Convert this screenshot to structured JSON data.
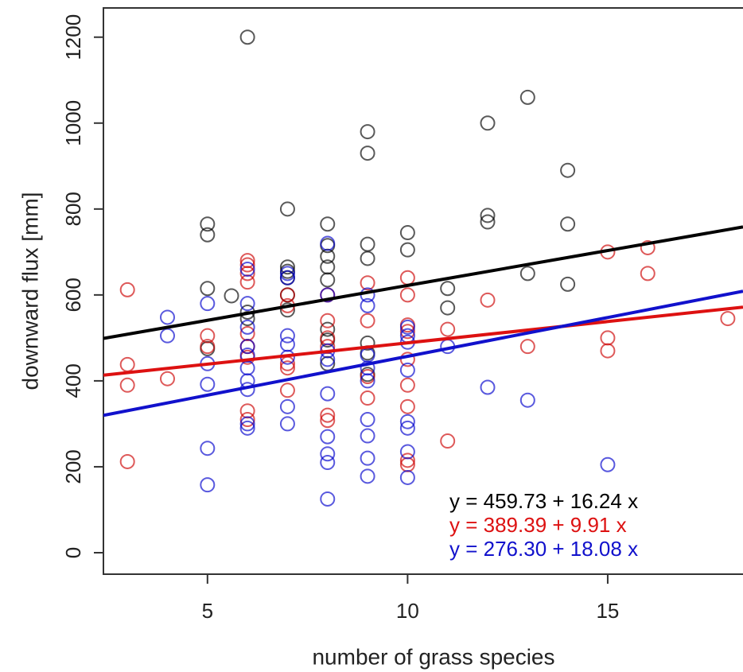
{
  "chart_data": {
    "type": "scatter",
    "x_label": "number of grass species",
    "y_label": "downward flux [mm]",
    "xlim": [
      2.4,
      18.38
    ],
    "ylim": [
      -50,
      1268
    ],
    "xticks": [
      5,
      10,
      15
    ],
    "yticks": [
      0,
      200,
      400,
      600,
      800,
      1000,
      1200
    ],
    "series": [
      {
        "color": "#000000",
        "x": [
          6,
          13,
          12,
          9,
          9,
          14,
          7,
          12,
          12,
          8,
          14,
          5,
          5,
          10,
          9,
          9,
          8,
          8,
          8,
          8,
          10,
          7,
          7,
          7,
          13,
          14,
          11,
          5,
          5.6,
          7,
          7,
          11,
          6,
          6,
          8,
          8,
          8,
          9,
          9,
          9,
          5
        ],
        "y": [
          1200,
          1060,
          1000,
          980,
          930,
          890,
          800,
          785,
          770,
          765,
          765,
          765,
          740,
          745,
          718,
          685,
          715,
          690,
          665,
          635,
          705,
          665,
          655,
          640,
          650,
          625,
          615,
          615,
          598,
          600,
          565,
          570,
          560,
          545,
          520,
          495,
          440,
          488,
          465,
          415,
          475
        ]
      },
      {
        "color": "#cc0000",
        "x": [
          3,
          3,
          3,
          3,
          4,
          5,
          5,
          6,
          6,
          6,
          6,
          6,
          6,
          6,
          6,
          6,
          7,
          7,
          7,
          7,
          7,
          8,
          8,
          8,
          8,
          8,
          8,
          9,
          9,
          9,
          9,
          10,
          10,
          10,
          10,
          10,
          10,
          10,
          10,
          10,
          11,
          11,
          12,
          13,
          15,
          15,
          15,
          16,
          16,
          18
        ],
        "y": [
          612,
          438,
          390,
          212,
          405,
          505,
          480,
          680,
          670,
          650,
          630,
          510,
          480,
          455,
          330,
          310,
          600,
          575,
          440,
          430,
          378,
          600,
          540,
          500,
          480,
          320,
          308,
          628,
          540,
          410,
          360,
          640,
          600,
          530,
          515,
          450,
          390,
          340,
          215,
          205,
          520,
          260,
          588,
          480,
          700,
          500,
          470,
          710,
          650,
          545
        ]
      },
      {
        "color": "#0000cc",
        "x": [
          4,
          4,
          5,
          5,
          5,
          5,
          5,
          6,
          6,
          6,
          6,
          6,
          6,
          6,
          6,
          6,
          6,
          7,
          7,
          7,
          7,
          7,
          7,
          7,
          8,
          8,
          8,
          8,
          8,
          8,
          8,
          8,
          8,
          9,
          9,
          9,
          9,
          9,
          9,
          9,
          9,
          9,
          10,
          10,
          10,
          10,
          10,
          10,
          10,
          10,
          11,
          12,
          13,
          15
        ],
        "y": [
          548,
          505,
          580,
          440,
          392,
          243,
          158,
          660,
          580,
          525,
          480,
          460,
          430,
          400,
          380,
          300,
          290,
          650,
          640,
          505,
          485,
          455,
          340,
          300,
          720,
          600,
          470,
          450,
          370,
          270,
          230,
          210,
          125,
          600,
          575,
          460,
          430,
          400,
          310,
          272,
          220,
          178,
          525,
          505,
          490,
          425,
          305,
          290,
          235,
          175,
          480,
          385,
          355,
          205
        ]
      }
    ],
    "fits": [
      {
        "label": "y = 459.73 + 16.24 x",
        "intercept": 459.73,
        "slope": 16.24,
        "color": "#000000"
      },
      {
        "label": "y = 389.39 + 9.91 x",
        "intercept": 389.39,
        "slope": 9.91,
        "color": "#dd1111"
      },
      {
        "label": "y = 276.30 + 18.08 x",
        "intercept": 276.3,
        "slope": 18.08,
        "color": "#1111cc"
      }
    ]
  }
}
